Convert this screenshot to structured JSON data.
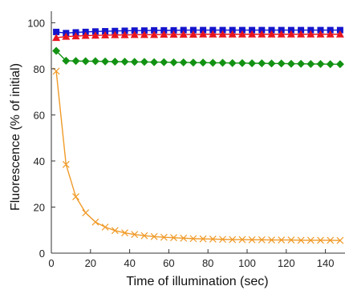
{
  "chart_data": {
    "type": "scatter",
    "title": "",
    "xlabel": "Time of illumination (sec)",
    "ylabel": "Fluorescence (% of initial)",
    "xlim": [
      0,
      150
    ],
    "ylim": [
      0,
      105
    ],
    "xticks": [
      0,
      20,
      40,
      60,
      80,
      100,
      120,
      140
    ],
    "yticks": [
      0,
      20,
      40,
      60,
      80,
      100
    ],
    "grid": false,
    "legend": "none",
    "series": [
      {
        "marker": "square",
        "color": "#1414cc",
        "x": [
          2.5,
          7.5,
          12.5,
          17.5,
          22.5,
          27.5,
          32.5,
          37.5,
          42.5,
          47.5,
          52.5,
          57.5,
          62.5,
          67.5,
          72.5,
          77.5,
          82.5,
          87.5,
          92.5,
          97.5,
          102.5,
          107.5,
          112.5,
          117.5,
          122.5,
          127.5,
          132.5,
          137.5,
          142.5,
          147.5
        ],
        "y": [
          96,
          95.5,
          95.8,
          96,
          96.2,
          96.3,
          96.4,
          96.5,
          96.6,
          96.6,
          96.7,
          96.7,
          96.7,
          96.8,
          96.8,
          96.8,
          96.8,
          96.8,
          96.8,
          96.8,
          96.8,
          96.8,
          96.8,
          96.8,
          96.8,
          96.8,
          96.8,
          96.8,
          96.8,
          96.8
        ]
      },
      {
        "marker": "triangle",
        "color": "#e8141e",
        "x": [
          2.5,
          7.5,
          12.5,
          17.5,
          22.5,
          27.5,
          32.5,
          37.5,
          42.5,
          47.5,
          52.5,
          57.5,
          62.5,
          67.5,
          72.5,
          77.5,
          82.5,
          87.5,
          92.5,
          97.5,
          102.5,
          107.5,
          112.5,
          117.5,
          122.5,
          127.5,
          132.5,
          137.5,
          142.5,
          147.5
        ],
        "y": [
          93.5,
          94,
          94.2,
          94.4,
          94.5,
          94.6,
          94.7,
          94.7,
          94.8,
          94.8,
          94.8,
          94.9,
          94.9,
          94.9,
          94.9,
          95,
          95,
          95,
          95,
          95,
          95,
          95,
          95,
          95,
          95,
          95,
          95,
          95,
          95,
          95
        ]
      },
      {
        "marker": "diamond",
        "color": "#129212",
        "x": [
          2.5,
          7.5,
          12.5,
          17.5,
          22.5,
          27.5,
          32.5,
          37.5,
          42.5,
          47.5,
          52.5,
          57.5,
          62.5,
          67.5,
          72.5,
          77.5,
          82.5,
          87.5,
          92.5,
          97.5,
          102.5,
          107.5,
          112.5,
          117.5,
          122.5,
          127.5,
          132.5,
          137.5,
          142.5,
          147.5
        ],
        "y": [
          87.8,
          83.5,
          83.4,
          83.3,
          83.3,
          83.2,
          83.1,
          83.1,
          83,
          83,
          82.9,
          82.9,
          82.8,
          82.8,
          82.7,
          82.7,
          82.6,
          82.6,
          82.5,
          82.5,
          82.4,
          82.4,
          82.3,
          82.3,
          82.2,
          82.2,
          82.1,
          82.1,
          82,
          82
        ]
      },
      {
        "marker": "x",
        "color": "#f09a28",
        "x": [
          2.5,
          7.5,
          12.5,
          17.5,
          22.5,
          27.5,
          32.5,
          37.5,
          42.5,
          47.5,
          52.5,
          57.5,
          62.5,
          67.5,
          72.5,
          77.5,
          82.5,
          87.5,
          92.5,
          97.5,
          102.5,
          107.5,
          112.5,
          117.5,
          122.5,
          127.5,
          132.5,
          137.5,
          142.5,
          147.5
        ],
        "y": [
          79,
          38.5,
          24.5,
          17.5,
          13.5,
          11.3,
          9.8,
          8.8,
          8.1,
          7.6,
          7.2,
          6.9,
          6.7,
          6.5,
          6.3,
          6.2,
          6.1,
          6,
          5.9,
          5.9,
          5.8,
          5.8,
          5.7,
          5.7,
          5.7,
          5.6,
          5.6,
          5.6,
          5.6,
          5.5
        ]
      }
    ]
  }
}
